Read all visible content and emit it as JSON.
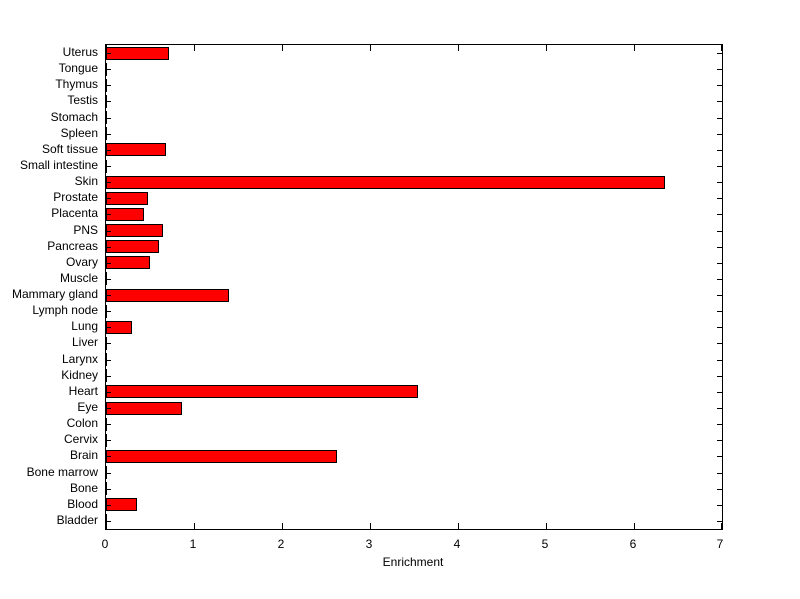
{
  "chart_data": {
    "type": "bar",
    "orientation": "horizontal",
    "title": "",
    "xlabel": "Enrichment",
    "ylabel": "",
    "xlim": [
      0,
      7
    ],
    "x_ticks": [
      0,
      1,
      2,
      3,
      4,
      5,
      6,
      7
    ],
    "categories": [
      "Uterus",
      "Tongue",
      "Thymus",
      "Testis",
      "Stomach",
      "Spleen",
      "Soft tissue",
      "Small intestine",
      "Skin",
      "Prostate",
      "Placenta",
      "PNS",
      "Pancreas",
      "Ovary",
      "Muscle",
      "Mammary gland",
      "Lymph node",
      "Lung",
      "Liver",
      "Larynx",
      "Kidney",
      "Heart",
      "Eye",
      "Colon",
      "Cervix",
      "Brain",
      "Bone marrow",
      "Bone",
      "Blood",
      "Bladder"
    ],
    "values": [
      0.72,
      0,
      0,
      0,
      0,
      0,
      0.68,
      0,
      6.35,
      0.48,
      0.43,
      0.65,
      0.6,
      0.5,
      0,
      1.4,
      0,
      0.3,
      0,
      0,
      0,
      3.55,
      0.86,
      0,
      0,
      2.62,
      0,
      0,
      0.35,
      0
    ],
    "categories_order": "top-to-bottom",
    "bar_color": "#ff0000",
    "bar_edge_color": "#000000",
    "axis_color": "#000000",
    "background": "#ffffff",
    "grid": false,
    "legend": null
  }
}
